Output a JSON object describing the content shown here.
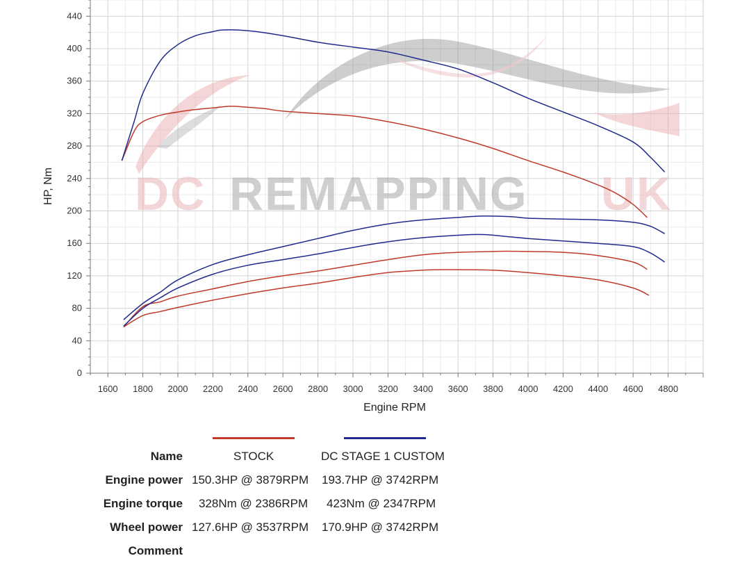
{
  "chart_data": {
    "type": "line",
    "title": "",
    "xlabel": "Engine RPM",
    "ylabel": "HP, Nm",
    "xlim": [
      1500,
      5000
    ],
    "ylim": [
      0,
      460
    ],
    "x_ticks": [
      1600,
      1800,
      2000,
      2200,
      2400,
      2600,
      2800,
      3000,
      3200,
      3400,
      3600,
      3800,
      4000,
      4200,
      4400,
      4600,
      4800
    ],
    "y_ticks": [
      0,
      40,
      80,
      120,
      160,
      200,
      240,
      280,
      320,
      360,
      400,
      440
    ],
    "grid": true,
    "watermark": "DC REMAPPING UK",
    "series": [
      {
        "group": "STOCK",
        "measure": "torque",
        "color": "#c0392b",
        "x": [
          1680,
          1750,
          1800,
          1900,
          2000,
          2100,
          2200,
          2300,
          2386,
          2500,
          2600,
          2800,
          3000,
          3200,
          3400,
          3600,
          3800,
          4000,
          4200,
          4400,
          4500,
          4600,
          4680
        ],
        "y": [
          262,
          298,
          310,
          318,
          322,
          325,
          327,
          329,
          328,
          326,
          323,
          320,
          317,
          310,
          301,
          290,
          277,
          262,
          248,
          232,
          222,
          208,
          192
        ]
      },
      {
        "group": "DC STAGE 1 CUSTOM",
        "measure": "torque",
        "color": "#1f2a8c",
        "x": [
          1680,
          1750,
          1800,
          1900,
          2000,
          2100,
          2200,
          2250,
          2347,
          2450,
          2600,
          2800,
          3000,
          3200,
          3400,
          3600,
          3800,
          4000,
          4200,
          4400,
          4600,
          4700,
          4780
        ],
        "y": [
          262,
          310,
          345,
          385,
          405,
          416,
          421,
          423,
          423,
          421,
          416,
          408,
          402,
          396,
          386,
          375,
          358,
          339,
          322,
          305,
          285,
          266,
          248
        ]
      },
      {
        "group": "STOCK",
        "measure": "engine power",
        "color": "#c0392b",
        "x": [
          1690,
          1800,
          1900,
          2000,
          2200,
          2400,
          2600,
          2800,
          3000,
          3200,
          3400,
          3600,
          3800,
          3879,
          4000,
          4200,
          4400,
          4600,
          4680
        ],
        "y": [
          57,
          82,
          88,
          95,
          104,
          113,
          120,
          126,
          133,
          140,
          146,
          149,
          150,
          150.3,
          150,
          149,
          145,
          137,
          128
        ]
      },
      {
        "group": "STOCK",
        "measure": "wheel power",
        "color": "#c0392b",
        "x": [
          1690,
          1800,
          1900,
          2000,
          2200,
          2400,
          2600,
          2800,
          3000,
          3200,
          3400,
          3537,
          3800,
          4000,
          4200,
          4400,
          4600,
          4690
        ],
        "y": [
          57,
          71,
          76,
          81,
          90,
          98,
          105,
          111,
          118,
          124,
          127,
          127.6,
          127,
          124,
          120,
          115,
          105,
          96
        ]
      },
      {
        "group": "DC STAGE 1 CUSTOM",
        "measure": "engine power",
        "color": "#1f2a8c",
        "x": [
          1690,
          1800,
          1900,
          2000,
          2200,
          2400,
          2600,
          2800,
          3000,
          3200,
          3400,
          3600,
          3742,
          3900,
          4000,
          4200,
          4400,
          4600,
          4700,
          4780
        ],
        "y": [
          66,
          86,
          100,
          115,
          134,
          146,
          156,
          166,
          176,
          184,
          189,
          192,
          193.7,
          193,
          191,
          190,
          189,
          186,
          181,
          172
        ]
      },
      {
        "group": "DC STAGE 1 CUSTOM",
        "measure": "wheel power",
        "color": "#1f2a8c",
        "x": [
          1690,
          1800,
          1900,
          2000,
          2200,
          2400,
          2600,
          2800,
          3000,
          3200,
          3400,
          3600,
          3742,
          3900,
          4000,
          4200,
          4400,
          4600,
          4700,
          4780
        ],
        "y": [
          58,
          80,
          93,
          105,
          122,
          133,
          140,
          147,
          155,
          162,
          167,
          170,
          170.9,
          168,
          166,
          163,
          160,
          156,
          148,
          137
        ]
      }
    ]
  },
  "legend": {
    "columns": [
      {
        "name": "STOCK",
        "color": "#c0392b"
      },
      {
        "name": "DC STAGE 1 CUSTOM",
        "color": "#1f2a8c"
      }
    ]
  },
  "table": {
    "rows": [
      {
        "label": "Name",
        "stock": "STOCK",
        "stage1": "DC STAGE 1 CUSTOM"
      },
      {
        "label": "Engine power",
        "stock": "150.3HP @  3879RPM",
        "stage1": "193.7HP @  3742RPM"
      },
      {
        "label": "Engine torque",
        "stock": "328Nm @ 2386RPM",
        "stage1": "423Nm @ 2347RPM"
      },
      {
        "label": "Wheel power",
        "stock": "127.6HP @  3537RPM",
        "stage1": "170.9HP @  3742RPM"
      },
      {
        "label": "Comment",
        "stock": "",
        "stage1": ""
      }
    ]
  }
}
